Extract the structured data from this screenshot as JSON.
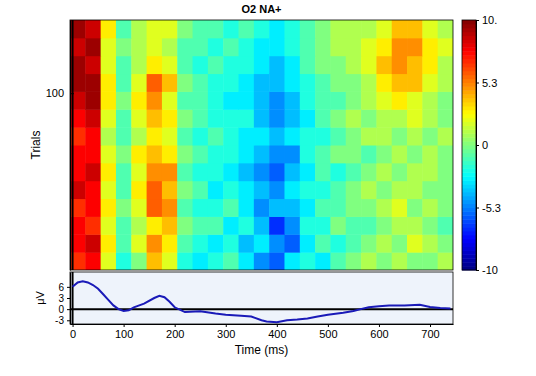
{
  "chart_data": [
    {
      "type": "heatmap",
      "title": "O2 NA+",
      "y_label": "Trials",
      "xlim": [
        -5,
        745
      ],
      "ylim": [
        1,
        141
      ],
      "yticks": [
        100
      ],
      "tick_labels": "y",
      "vlines": [
        0
      ],
      "x": [
        10,
        40,
        70,
        100,
        130,
        160,
        190,
        220,
        250,
        280,
        310,
        340,
        370,
        400,
        430,
        460,
        490,
        520,
        550,
        580,
        610,
        640,
        670,
        700,
        730
      ],
      "y": [
        6,
        16,
        26,
        36,
        46,
        56,
        66,
        76,
        86,
        96,
        106,
        116,
        126,
        136
      ],
      "cells": [
        [
          7,
          8,
          2,
          -2,
          0,
          4,
          2,
          -2,
          -3,
          -2,
          -1,
          -3,
          -5,
          -6,
          -3,
          -2,
          -3,
          -1,
          0,
          1,
          0,
          1,
          0,
          0,
          1
        ],
        [
          8,
          9,
          3,
          -1,
          2,
          5,
          3,
          -1,
          -2,
          -3,
          -2,
          -4,
          -3,
          -5,
          -6,
          -3,
          -1,
          -2,
          -1,
          0,
          1,
          0,
          2,
          1,
          0
        ],
        [
          8,
          7,
          2,
          -1,
          1,
          3,
          4,
          0,
          -1,
          -1,
          -3,
          -2,
          -4,
          -7,
          -5,
          -2,
          -2,
          0,
          -1,
          -1,
          0,
          1,
          1,
          0,
          -1
        ],
        [
          7,
          8,
          3,
          0,
          2,
          6,
          5,
          -1,
          -2,
          -2,
          -1,
          -3,
          -5,
          -4,
          -4,
          -3,
          -1,
          -1,
          0,
          0,
          1,
          2,
          0,
          1,
          0
        ],
        [
          9,
          8,
          2,
          -1,
          3,
          6,
          4,
          0,
          -1,
          -3,
          -2,
          -3,
          -4,
          -5,
          -3,
          -2,
          -2,
          -1,
          0,
          1,
          0,
          1,
          1,
          0,
          0
        ],
        [
          8,
          9,
          3,
          -1,
          2,
          5,
          5,
          -1,
          -2,
          -2,
          -3,
          -4,
          -5,
          -6,
          -4,
          -3,
          -1,
          -2,
          -1,
          0,
          1,
          0,
          1,
          1,
          0
        ],
        [
          8,
          8,
          2,
          0,
          3,
          4,
          3,
          0,
          -1,
          -2,
          -2,
          -3,
          -4,
          -5,
          -5,
          -2,
          -1,
          0,
          0,
          -1,
          0,
          1,
          0,
          1,
          0
        ],
        [
          7,
          8,
          1,
          -1,
          1,
          3,
          2,
          -1,
          -2,
          -1,
          -2,
          -3,
          -3,
          -4,
          -3,
          -2,
          -2,
          -1,
          0,
          1,
          1,
          0,
          1,
          0,
          1
        ],
        [
          8,
          9,
          2,
          -1,
          2,
          4,
          3,
          0,
          -1,
          -2,
          -2,
          -2,
          -4,
          -5,
          -4,
          -3,
          -1,
          0,
          1,
          0,
          1,
          1,
          2,
          1,
          0
        ],
        [
          9,
          10,
          3,
          0,
          3,
          5,
          2,
          -1,
          -1,
          -2,
          -3,
          -3,
          -4,
          -5,
          -4,
          -2,
          -1,
          -1,
          0,
          1,
          2,
          3,
          2,
          1,
          0
        ],
        [
          10,
          10,
          3,
          -1,
          2,
          6,
          4,
          0,
          -1,
          -2,
          -2,
          -3,
          -4,
          -4,
          -3,
          -2,
          -1,
          0,
          0,
          1,
          3,
          4,
          4,
          2,
          1
        ],
        [
          10,
          9,
          2,
          -1,
          1,
          3,
          2,
          -1,
          -2,
          -1,
          -2,
          -2,
          -3,
          -4,
          -3,
          -1,
          0,
          0,
          1,
          2,
          4,
          5,
          4,
          3,
          1
        ],
        [
          9,
          10,
          2,
          0,
          1,
          2,
          1,
          -1,
          -1,
          -2,
          -1,
          -2,
          -3,
          -3,
          -2,
          -1,
          0,
          1,
          1,
          2,
          3,
          5,
          5,
          3,
          2
        ],
        [
          10,
          9,
          3,
          -1,
          1,
          2,
          2,
          0,
          -1,
          -1,
          -2,
          -1,
          -2,
          -3,
          -2,
          -1,
          0,
          1,
          1,
          1,
          2,
          4,
          4,
          2,
          1
        ]
      ],
      "colorbar": {
        "range": [
          -10.6,
          10.6
        ],
        "ticks": [
          {
            "value": 10.6,
            "label": "10."
          },
          5.3,
          0,
          -5.3,
          {
            "value": -10.6,
            "label": "-10"
          }
        ]
      }
    },
    {
      "type": "line",
      "x_label": "Time (ms)",
      "y_label": "μV",
      "color": "#1a1ab8",
      "xlim": [
        -5,
        745
      ],
      "ylim": [
        -4,
        10
      ],
      "xticks": [
        0,
        100,
        200,
        300,
        400,
        500,
        600,
        700
      ],
      "yticks": [
        -3,
        0,
        3,
        6
      ],
      "vlines": [
        0
      ],
      "hlines": [
        0
      ],
      "x": [
        0,
        10,
        20,
        30,
        40,
        50,
        60,
        70,
        80,
        90,
        100,
        110,
        120,
        140,
        160,
        170,
        180,
        190,
        200,
        220,
        250,
        280,
        300,
        330,
        350,
        370,
        380,
        400,
        420,
        440,
        460,
        480,
        500,
        530,
        550,
        570,
        580,
        600,
        620,
        650,
        680,
        700,
        720,
        740
      ],
      "values": [
        6,
        7.2,
        7.5,
        7.2,
        6.5,
        5.5,
        4,
        2.5,
        1,
        0,
        -0.5,
        -0.3,
        0.5,
        1.5,
        3,
        3.6,
        3.2,
        2,
        0.5,
        -0.8,
        -0.6,
        -1.2,
        -1.5,
        -1.8,
        -2,
        -3,
        -3.3,
        -3.5,
        -3,
        -2.8,
        -2.5,
        -2,
        -1.5,
        -1,
        -0.5,
        0.2,
        0.5,
        0.8,
        1,
        1,
        1.2,
        0.6,
        0.3,
        0.2
      ]
    }
  ]
}
